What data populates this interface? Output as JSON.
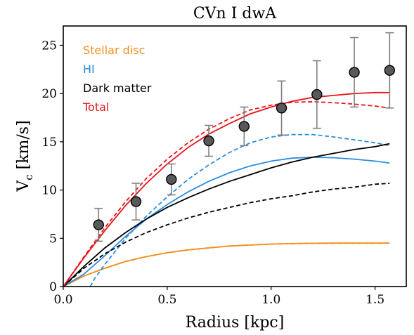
{
  "chart_data": {
    "type": "line",
    "title": "CVn I dwA",
    "xlabel": "Radius [kpc]",
    "ylabel": "V_c [km/s]",
    "ylabel_main": "V",
    "ylabel_sub": "c",
    "ylabel_rest": " [km/s]",
    "xlim": [
      0.0,
      1.65
    ],
    "ylim": [
      0,
      27
    ],
    "xticks": [
      0.0,
      0.5,
      1.0,
      1.5
    ],
    "xtick_labels": [
      "0.0",
      "0.5",
      "1.0",
      "1.5"
    ],
    "yticks": [
      0,
      5,
      10,
      15,
      20,
      25
    ],
    "ytick_labels": [
      "0",
      "5",
      "10",
      "15",
      "20",
      "25"
    ],
    "grid": false,
    "legend_placement": "top-left",
    "legend": [
      {
        "label": "Stellar disc",
        "color": "#f28e1c"
      },
      {
        "label": "HI",
        "color": "#2b8de0"
      },
      {
        "label": "Dark matter",
        "color": "#000000"
      },
      {
        "label": "Total",
        "color": "#e8141b"
      }
    ],
    "observed": {
      "name": "",
      "marker_color": "#595959",
      "errorbar_color": "#808080",
      "x": [
        0.17,
        0.35,
        0.52,
        0.7,
        0.87,
        1.05,
        1.22,
        1.4,
        1.57
      ],
      "y": [
        6.4,
        8.8,
        11.1,
        15.1,
        16.6,
        18.5,
        19.9,
        22.2,
        22.4
      ],
      "err": [
        1.7,
        1.9,
        1.6,
        1.6,
        2.0,
        2.8,
        3.5,
        3.6,
        3.9
      ]
    },
    "series": [
      {
        "component": "Stellar disc",
        "style": "solid",
        "color": "#f28e1c",
        "x": [
          0.0,
          0.1,
          0.2,
          0.3,
          0.4,
          0.5,
          0.6,
          0.7,
          0.8,
          0.9,
          1.0,
          1.1,
          1.2,
          1.3,
          1.4,
          1.5,
          1.57
        ],
        "y": [
          0.0,
          1.1,
          1.9,
          2.6,
          3.1,
          3.5,
          3.8,
          4.0,
          4.2,
          4.3,
          4.4,
          4.45,
          4.48,
          4.5,
          4.5,
          4.5,
          4.5
        ]
      },
      {
        "component": "Stellar disc",
        "style": "dashed",
        "color": "#f28e1c",
        "x": [
          0.0,
          0.1,
          0.2,
          0.3,
          0.4,
          0.5,
          0.6,
          0.7,
          0.8,
          0.9,
          1.0,
          1.1,
          1.2,
          1.3,
          1.4,
          1.5,
          1.57
        ],
        "y": [
          0.0,
          1.1,
          1.9,
          2.6,
          3.1,
          3.5,
          3.8,
          4.0,
          4.2,
          4.3,
          4.4,
          4.45,
          4.48,
          4.5,
          4.5,
          4.5,
          4.5
        ]
      },
      {
        "component": "HI",
        "style": "solid",
        "color": "#2b8de0",
        "x": [
          0.0,
          0.1,
          0.2,
          0.3,
          0.4,
          0.5,
          0.6,
          0.7,
          0.8,
          0.9,
          1.0,
          1.1,
          1.2,
          1.3,
          1.4,
          1.5,
          1.57
        ],
        "y": [
          0.0,
          1.3,
          3.2,
          5.2,
          7.0,
          8.5,
          9.8,
          10.9,
          11.8,
          12.5,
          13.0,
          13.3,
          13.4,
          13.35,
          13.2,
          13.0,
          12.8
        ]
      },
      {
        "component": "HI",
        "style": "dashed",
        "color": "#2b8de0",
        "x": [
          0.13,
          0.15,
          0.2,
          0.3,
          0.4,
          0.5,
          0.6,
          0.7,
          0.8,
          0.9,
          1.0,
          1.1,
          1.2,
          1.3,
          1.4,
          1.5,
          1.57
        ],
        "y": [
          0.0,
          0.8,
          2.3,
          5.0,
          7.3,
          9.3,
          11.1,
          12.6,
          13.9,
          14.9,
          15.5,
          15.75,
          15.75,
          15.5,
          15.2,
          14.9,
          14.6
        ]
      },
      {
        "component": "Dark matter",
        "style": "solid",
        "color": "#000000",
        "x": [
          0.0,
          0.1,
          0.2,
          0.3,
          0.4,
          0.5,
          0.6,
          0.7,
          0.8,
          0.9,
          1.0,
          1.1,
          1.2,
          1.3,
          1.4,
          1.5,
          1.57
        ],
        "y": [
          0.0,
          2.1,
          4.0,
          5.6,
          7.0,
          8.2,
          9.2,
          10.1,
          10.9,
          11.6,
          12.3,
          12.9,
          13.4,
          13.8,
          14.2,
          14.5,
          14.8
        ]
      },
      {
        "component": "Dark matter",
        "style": "dashed",
        "color": "#000000",
        "x": [
          0.0,
          0.1,
          0.2,
          0.3,
          0.4,
          0.5,
          0.6,
          0.7,
          0.8,
          0.9,
          1.0,
          1.1,
          1.2,
          1.3,
          1.4,
          1.5,
          1.57
        ],
        "y": [
          0.0,
          1.9,
          3.4,
          4.6,
          5.6,
          6.4,
          7.1,
          7.7,
          8.2,
          8.7,
          9.1,
          9.4,
          9.8,
          10.1,
          10.3,
          10.6,
          10.7
        ]
      },
      {
        "component": "Total",
        "style": "solid",
        "color": "#e8141b",
        "x": [
          0.0,
          0.1,
          0.2,
          0.3,
          0.4,
          0.5,
          0.6,
          0.7,
          0.8,
          0.9,
          1.0,
          1.1,
          1.2,
          1.3,
          1.4,
          1.5,
          1.57
        ],
        "y": [
          0.0,
          3.0,
          5.8,
          8.4,
          10.7,
          12.7,
          14.4,
          15.8,
          16.9,
          17.9,
          18.6,
          19.2,
          19.6,
          19.8,
          20.0,
          20.1,
          20.1
        ]
      },
      {
        "component": "Total",
        "style": "dashed",
        "color": "#e8141b",
        "x": [
          0.0,
          0.1,
          0.2,
          0.3,
          0.4,
          0.5,
          0.6,
          0.7,
          0.8,
          0.9,
          1.0,
          1.1,
          1.2,
          1.3,
          1.4,
          1.5,
          1.57
        ],
        "y": [
          0.0,
          3.1,
          6.1,
          8.8,
          11.2,
          13.2,
          14.9,
          16.3,
          17.4,
          18.3,
          18.8,
          19.1,
          19.15,
          19.05,
          18.9,
          18.7,
          18.5
        ]
      }
    ]
  }
}
